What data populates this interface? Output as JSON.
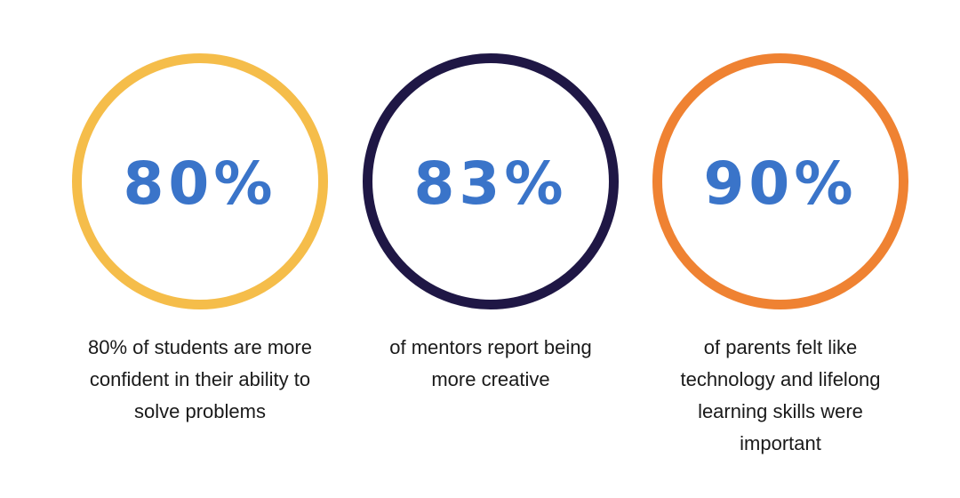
{
  "colors": {
    "value_text": "#3a74c9",
    "caption_text": "#1a1a1a",
    "background": "#ffffff"
  },
  "stats": [
    {
      "value": "80%",
      "ring_color": "#f5bd4a",
      "caption_lines": [
        "80% of students are more",
        "confident in their ability to",
        "solve problems"
      ]
    },
    {
      "value": "83%",
      "ring_color": "#1f1745",
      "caption_lines": [
        "of mentors report being",
        "more creative"
      ]
    },
    {
      "value": "90%",
      "ring_color": "#ef8232",
      "caption_lines": [
        "of parents felt like",
        "technology and lifelong",
        "learning skills were",
        "important"
      ]
    }
  ]
}
